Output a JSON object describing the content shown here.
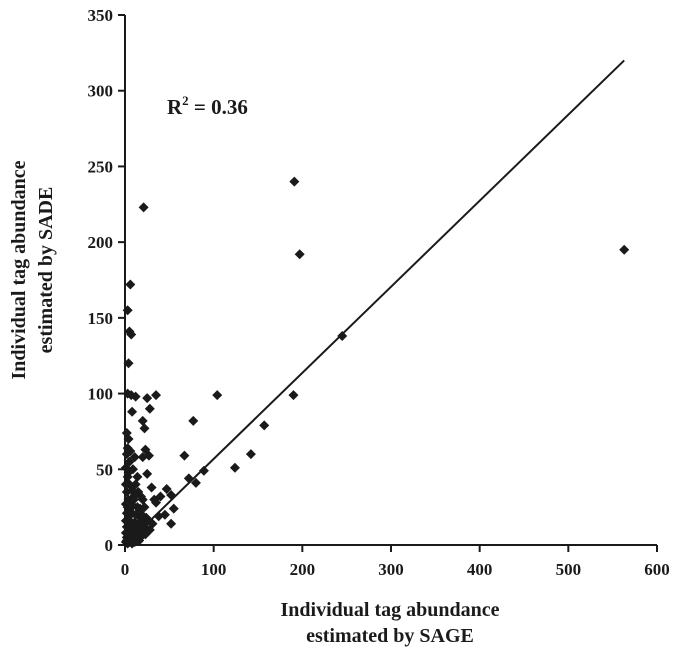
{
  "chart_data": {
    "type": "scatter",
    "title": "",
    "xlabel": [
      "Individual tag abundance",
      "estimated by SAGE"
    ],
    "ylabel": [
      "Individual tag abundance",
      "estimated by SADE"
    ],
    "xlim": [
      0,
      600
    ],
    "ylim": [
      0,
      350
    ],
    "xticks": [
      0,
      100,
      200,
      300,
      400,
      500,
      600
    ],
    "yticks": [
      0,
      50,
      100,
      150,
      200,
      250,
      300,
      350
    ],
    "grid": false,
    "legend": "none",
    "marker": "diamond",
    "color": "#1a1a1a",
    "annotation": {
      "r_label": "R",
      "r_exp": "2",
      "r_value": " = 0.36"
    },
    "trendline": {
      "x": [
        0,
        563
      ],
      "y": [
        0,
        320
      ]
    },
    "points": [
      [
        563,
        195
      ],
      [
        191,
        240
      ],
      [
        197,
        192
      ],
      [
        21,
        223
      ],
      [
        245,
        138
      ],
      [
        190,
        99
      ],
      [
        104,
        99
      ],
      [
        157,
        79
      ],
      [
        142,
        60
      ],
      [
        124,
        51
      ],
      [
        89,
        49
      ],
      [
        77,
        82
      ],
      [
        67,
        59
      ],
      [
        72,
        44
      ],
      [
        80,
        41
      ],
      [
        52,
        33
      ],
      [
        47,
        37
      ],
      [
        55,
        24
      ],
      [
        52,
        14
      ],
      [
        45,
        20
      ],
      [
        40,
        32
      ],
      [
        35,
        99
      ],
      [
        28,
        90
      ],
      [
        25,
        97
      ],
      [
        22,
        77
      ],
      [
        20,
        82
      ],
      [
        23,
        63
      ],
      [
        20,
        58
      ],
      [
        27,
        59
      ],
      [
        25,
        47
      ],
      [
        30,
        38
      ],
      [
        33,
        30
      ],
      [
        35,
        28
      ],
      [
        38,
        19
      ],
      [
        31,
        14
      ],
      [
        28,
        10
      ],
      [
        6,
        172
      ],
      [
        3,
        155
      ],
      [
        5,
        141
      ],
      [
        7,
        139
      ],
      [
        4,
        120
      ],
      [
        3,
        100
      ],
      [
        7,
        99
      ],
      [
        12,
        98
      ],
      [
        8,
        88
      ],
      [
        2,
        74
      ],
      [
        4,
        70
      ],
      [
        3,
        64
      ],
      [
        6,
        62
      ],
      [
        2,
        60
      ],
      [
        5,
        55
      ],
      [
        11,
        58
      ],
      [
        9,
        50
      ],
      [
        1,
        51
      ],
      [
        3,
        45
      ],
      [
        1,
        40
      ],
      [
        5,
        40
      ],
      [
        12,
        40
      ],
      [
        15,
        35
      ],
      [
        2,
        35
      ],
      [
        4,
        30
      ],
      [
        7,
        30
      ],
      [
        10,
        30
      ],
      [
        18,
        32
      ],
      [
        20,
        30
      ],
      [
        1,
        27
      ],
      [
        3,
        25
      ],
      [
        6,
        25
      ],
      [
        9,
        26
      ],
      [
        14,
        25
      ],
      [
        17,
        24
      ],
      [
        22,
        25
      ],
      [
        2,
        21
      ],
      [
        5,
        20
      ],
      [
        8,
        21
      ],
      [
        12,
        20
      ],
      [
        16,
        19
      ],
      [
        19,
        20
      ],
      [
        24,
        18
      ],
      [
        1,
        16
      ],
      [
        4,
        16
      ],
      [
        7,
        15
      ],
      [
        11,
        15
      ],
      [
        15,
        14
      ],
      [
        18,
        15
      ],
      [
        21,
        14
      ],
      [
        26,
        16
      ],
      [
        2,
        12
      ],
      [
        5,
        12
      ],
      [
        9,
        11
      ],
      [
        13,
        11
      ],
      [
        17,
        10
      ],
      [
        20,
        10
      ],
      [
        24,
        11
      ],
      [
        1,
        8
      ],
      [
        3,
        8
      ],
      [
        6,
        8
      ],
      [
        10,
        7
      ],
      [
        14,
        7
      ],
      [
        19,
        6
      ],
      [
        23,
        7
      ],
      [
        2,
        5
      ],
      [
        4,
        4
      ],
      [
        7,
        4
      ],
      [
        12,
        4
      ],
      [
        16,
        3
      ],
      [
        1,
        2
      ],
      [
        3,
        1
      ],
      [
        5,
        2
      ],
      [
        8,
        1
      ],
      [
        11,
        2
      ],
      [
        2,
        3
      ],
      [
        6,
        6
      ],
      [
        9,
        9
      ],
      [
        13,
        13
      ],
      [
        16,
        22
      ],
      [
        11,
        33
      ],
      [
        8,
        36
      ],
      [
        4,
        48
      ],
      [
        14,
        45
      ]
    ]
  }
}
